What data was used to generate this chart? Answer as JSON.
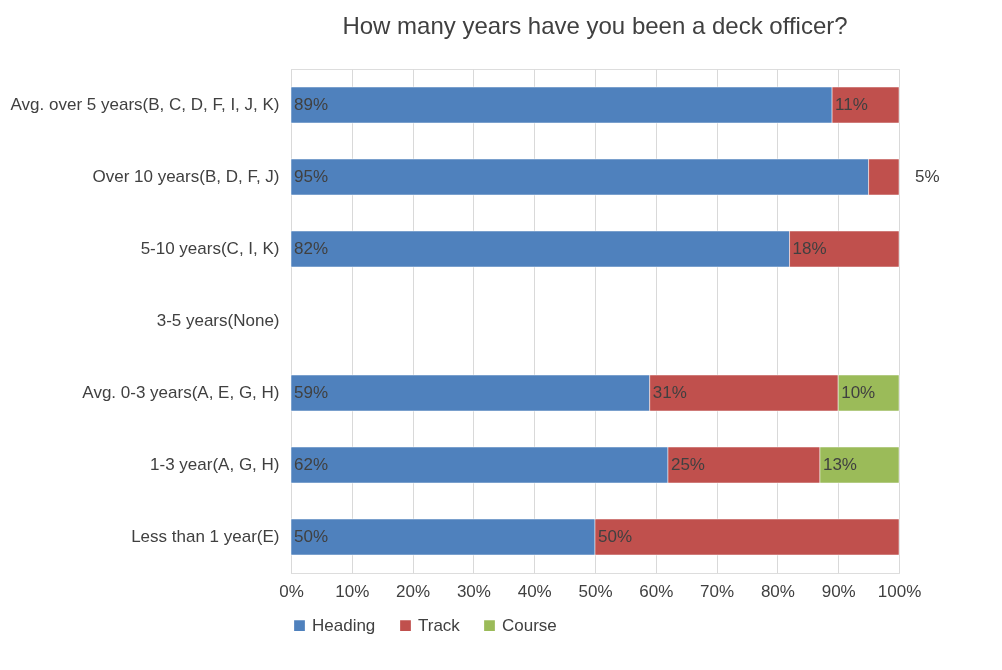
{
  "chart_data": {
    "type": "bar",
    "orientation": "horizontal",
    "stacked": true,
    "title": "How many years have you been a deck officer?",
    "categories": [
      "Avg. over 5 years(B, C, D, F, I, J, K)",
      "Over 10 years(B, D, F, J)",
      "5-10 years(C, I, K)",
      "3-5 years(None)",
      "Avg. 0-3 years(A, E, G, H)",
      "1-3 year(A, G, H)",
      "Less than 1 year(E)"
    ],
    "series": [
      {
        "name": "Heading",
        "color": "#4f81bd",
        "values": [
          89,
          95,
          82,
          null,
          59,
          62,
          50
        ],
        "value_labels": [
          "89%",
          "95%",
          "82%",
          null,
          "59%",
          "62%",
          "50%"
        ]
      },
      {
        "name": "Track",
        "color": "#c0504d",
        "values": [
          11,
          5,
          18,
          null,
          31,
          25,
          50
        ],
        "value_labels": [
          "11%",
          "5%",
          "18%",
          null,
          "31%",
          "25%",
          "50%"
        ]
      },
      {
        "name": "Course",
        "color": "#9bbb59",
        "values": [
          null,
          null,
          null,
          null,
          10,
          13,
          null
        ],
        "value_labels": [
          null,
          null,
          null,
          null,
          "10%",
          "13%",
          null
        ]
      }
    ],
    "xlim": [
      0,
      100
    ],
    "xticks": [
      {
        "value": 0,
        "label": "0%"
      },
      {
        "value": 10,
        "label": "10%"
      },
      {
        "value": 20,
        "label": "20%"
      },
      {
        "value": 30,
        "label": "30%"
      },
      {
        "value": 40,
        "label": "40%"
      },
      {
        "value": 50,
        "label": "50%"
      },
      {
        "value": 60,
        "label": "60%"
      },
      {
        "value": 70,
        "label": "70%"
      },
      {
        "value": 80,
        "label": "80%"
      },
      {
        "value": 90,
        "label": "90%"
      },
      {
        "value": 100,
        "label": "100%"
      }
    ],
    "grid": "x",
    "legend": "bottom"
  }
}
